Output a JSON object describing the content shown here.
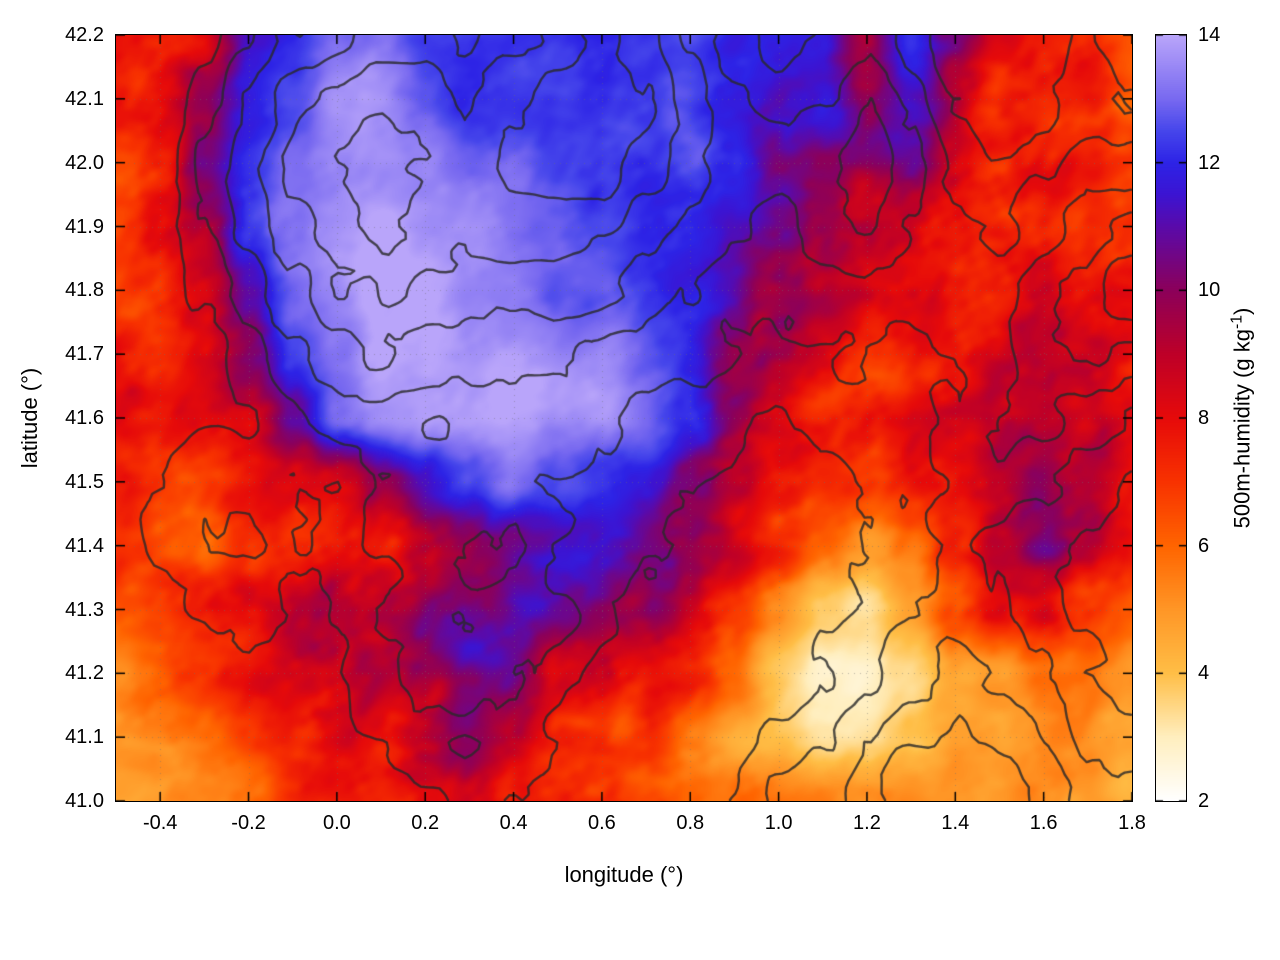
{
  "figure": {
    "xlabel": "longitude (°)",
    "ylabel": "latitude (°)",
    "colorbar_label_main": "500m-humidity (g kg",
    "colorbar_label_sup": "-1",
    "colorbar_label_close": ")"
  },
  "chart_data": {
    "type": "heatmap",
    "title": "",
    "xlabel": "longitude (°)",
    "ylabel": "latitude (°)",
    "colorbar_label": "500m-humidity (g kg^-1)",
    "x_range": [
      -0.5,
      1.8
    ],
    "y_range": [
      41.0,
      42.2
    ],
    "cb_range": [
      2,
      14
    ],
    "x_ticks": [
      -0.4,
      -0.2,
      0.0,
      0.2,
      0.4,
      0.6,
      0.8,
      1.0,
      1.2,
      1.4,
      1.6,
      1.8
    ],
    "x_tick_labels": [
      "-0.4",
      "-0.2",
      "0.0",
      "0.2",
      "0.4",
      "0.6",
      "0.8",
      "1.0",
      "1.2",
      "1.4",
      "1.6",
      "1.8"
    ],
    "y_ticks": [
      41.0,
      41.1,
      41.2,
      41.3,
      41.4,
      41.5,
      41.6,
      41.7,
      41.8,
      41.9,
      42.0,
      42.1,
      42.2
    ],
    "y_tick_labels": [
      "41.0",
      "41.1",
      "41.2",
      "41.3",
      "41.4",
      "41.5",
      "41.6",
      "41.7",
      "41.8",
      "41.9",
      "42.0",
      "42.1",
      "42.2"
    ],
    "cb_ticks": [
      2,
      4,
      6,
      8,
      10,
      12,
      14
    ],
    "cb_tick_labels": [
      "2",
      "4",
      "6",
      "8",
      "10",
      "12",
      "14"
    ],
    "grid": true,
    "legend": "colorbar-right",
    "colormap": [
      [
        2,
        "#ffffff"
      ],
      [
        3,
        "#ffeebe"
      ],
      [
        4,
        "#ffbe46"
      ],
      [
        5,
        "#ff9626"
      ],
      [
        6,
        "#ff6400"
      ],
      [
        7,
        "#f83200"
      ],
      [
        8,
        "#e60a0a"
      ],
      [
        9,
        "#be0028"
      ],
      [
        10,
        "#8c005a"
      ],
      [
        11,
        "#5a0aaa"
      ],
      [
        11.5,
        "#3c14d2"
      ],
      [
        12,
        "#2d23e6"
      ],
      [
        12.5,
        "#4646eb"
      ],
      [
        13,
        "#7869f0"
      ],
      [
        14,
        "#b9a5fa"
      ]
    ],
    "humidity_grid": {
      "units": "g kg^-1",
      "lon_start": -0.5,
      "lon_step": 0.1,
      "lat_start": 42.2,
      "lat_step": -0.1,
      "row_order": "north_to_south",
      "values": [
        [
          8,
          8,
          8.5,
          11.5,
          12,
          13,
          13,
          12.5,
          12.5,
          12.5,
          12,
          11.5,
          12,
          12.5,
          12,
          12,
          12,
          9,
          12,
          10,
          8.5,
          8,
          7,
          6
        ],
        [
          8,
          8.5,
          10.5,
          12,
          12.5,
          13.5,
          13.5,
          13,
          12.5,
          12.5,
          12.5,
          12,
          12,
          12.5,
          12,
          11.5,
          12,
          9.5,
          11,
          9.5,
          8,
          7.5,
          8,
          6.5
        ],
        [
          7.5,
          8.5,
          11,
          12.5,
          13,
          13.5,
          13.5,
          13.5,
          13,
          13,
          12.5,
          12,
          12,
          12.5,
          12,
          10.5,
          10,
          9.5,
          10.5,
          9,
          8.5,
          8.5,
          8,
          7
        ],
        [
          7,
          8,
          9.5,
          12,
          13,
          13.5,
          14,
          13.5,
          13.5,
          13,
          13,
          12.5,
          12,
          12,
          11.5,
          10.5,
          9,
          8.5,
          9,
          8.5,
          8,
          8,
          7.5,
          7.5
        ],
        [
          7,
          7.5,
          8.5,
          11,
          13,
          13.5,
          14,
          14,
          13.5,
          13.5,
          13,
          13,
          12.5,
          12,
          11,
          9.5,
          8.5,
          8,
          8.5,
          8,
          8,
          8.5,
          8,
          7.5
        ],
        [
          7.5,
          7.5,
          8,
          9.5,
          12.5,
          13.5,
          14,
          14,
          13.5,
          13.5,
          13.5,
          13.5,
          13,
          12,
          10,
          9,
          8,
          7.5,
          8,
          8,
          8.5,
          9,
          8.5,
          8
        ],
        [
          8,
          7.5,
          7.5,
          8.5,
          11,
          13,
          13.5,
          13.5,
          13.5,
          14,
          13.5,
          13.5,
          13,
          12,
          10,
          8.5,
          7.5,
          7.5,
          8,
          8.5,
          9,
          9.5,
          9,
          8.5
        ],
        [
          7.5,
          7,
          6.5,
          7,
          8,
          8.5,
          10,
          11.5,
          12.5,
          13.5,
          13,
          12.5,
          12,
          10.5,
          9,
          8,
          7,
          6.5,
          7.5,
          8,
          9,
          10,
          9,
          8
        ],
        [
          7,
          6.5,
          6,
          6.5,
          7.5,
          8,
          8.5,
          9.5,
          10.5,
          11,
          11.5,
          11,
          10.5,
          9.5,
          8.5,
          7.5,
          6.5,
          5.5,
          6.5,
          8,
          9.5,
          10.5,
          9,
          7.5
        ],
        [
          6,
          6.5,
          7,
          7.5,
          8,
          8.5,
          9,
          10,
          10.5,
          11,
          10.5,
          10,
          9.5,
          8.5,
          7.5,
          5.5,
          4,
          3.5,
          4.5,
          6.5,
          8,
          8.5,
          7,
          6
        ],
        [
          5.5,
          6,
          6.5,
          7,
          7.5,
          8,
          8.5,
          9,
          10.5,
          11,
          9.5,
          8.5,
          8,
          7,
          5.5,
          4,
          3,
          3,
          3.5,
          4.5,
          5,
          5.5,
          5.5,
          5
        ],
        [
          5,
          5.5,
          6,
          6.5,
          7,
          7.5,
          8,
          9,
          11,
          10,
          8,
          7.5,
          7,
          5.5,
          4.5,
          4,
          3.5,
          3.5,
          4,
          4.5,
          4.5,
          5,
          5,
          4.5
        ],
        [
          5,
          5,
          5.5,
          6,
          6.5,
          7,
          7.5,
          8.5,
          9.5,
          8.5,
          7.5,
          7,
          6.5,
          6,
          5.5,
          5,
          5,
          5,
          5,
          5,
          5,
          5,
          5,
          4.5
        ]
      ]
    },
    "contour_overlay": {
      "description": "topography contour lines",
      "color": "#2a2a2a",
      "levels": [
        35,
        42,
        49,
        56,
        63,
        70
      ],
      "terrain_grid": [
        [
          20,
          25,
          30,
          40,
          50,
          55,
          60,
          60,
          55,
          60,
          65,
          70,
          65,
          55,
          45,
          40,
          45,
          50,
          40,
          30,
          25,
          30,
          35,
          30
        ],
        [
          22,
          30,
          40,
          50,
          60,
          65,
          70,
          68,
          62,
          68,
          75,
          78,
          70,
          60,
          50,
          45,
          50,
          55,
          45,
          35,
          30,
          35,
          40,
          35
        ],
        [
          25,
          32,
          45,
          55,
          65,
          70,
          72,
          70,
          65,
          70,
          72,
          74,
          66,
          58,
          52,
          50,
          55,
          60,
          50,
          40,
          35,
          40,
          48,
          45
        ],
        [
          25,
          30,
          42,
          52,
          62,
          68,
          70,
          68,
          64,
          66,
          68,
          66,
          60,
          55,
          50,
          48,
          52,
          55,
          48,
          42,
          40,
          45,
          55,
          60
        ],
        [
          22,
          28,
          35,
          45,
          55,
          62,
          64,
          62,
          60,
          60,
          60,
          58,
          54,
          50,
          46,
          44,
          46,
          48,
          45,
          42,
          45,
          52,
          62,
          70
        ],
        [
          20,
          25,
          30,
          38,
          45,
          52,
          56,
          55,
          54,
          52,
          50,
          48,
          46,
          44,
          42,
          40,
          40,
          42,
          42,
          44,
          48,
          55,
          60,
          55
        ],
        [
          22,
          28,
          32,
          35,
          40,
          44,
          48,
          48,
          47,
          45,
          44,
          42,
          40,
          38,
          37,
          36,
          36,
          38,
          40,
          44,
          50,
          52,
          48,
          42
        ],
        [
          28,
          35,
          40,
          38,
          36,
          38,
          42,
          44,
          45,
          44,
          42,
          40,
          38,
          36,
          34,
          33,
          34,
          36,
          40,
          45,
          48,
          44,
          38,
          34
        ],
        [
          30,
          38,
          42,
          40,
          36,
          38,
          44,
          48,
          50,
          48,
          44,
          40,
          36,
          34,
          32,
          31,
          32,
          35,
          40,
          44,
          42,
          38,
          34,
          30
        ],
        [
          26,
          32,
          36,
          36,
          34,
          36,
          42,
          46,
          48,
          46,
          42,
          38,
          34,
          32,
          30,
          30,
          32,
          36,
          42,
          46,
          42,
          36,
          32,
          28
        ],
        [
          22,
          26,
          30,
          32,
          32,
          34,
          38,
          42,
          44,
          42,
          38,
          34,
          32,
          30,
          30,
          32,
          36,
          42,
          48,
          52,
          48,
          42,
          36,
          32
        ],
        [
          18,
          22,
          26,
          28,
          30,
          32,
          34,
          38,
          40,
          38,
          34,
          32,
          30,
          30,
          32,
          36,
          42,
          48,
          54,
          58,
          54,
          48,
          42,
          38
        ],
        [
          15,
          18,
          22,
          25,
          27,
          30,
          32,
          34,
          36,
          34,
          32,
          30,
          30,
          32,
          36,
          42,
          48,
          54,
          60,
          64,
          60,
          54,
          48,
          44
        ]
      ]
    }
  }
}
